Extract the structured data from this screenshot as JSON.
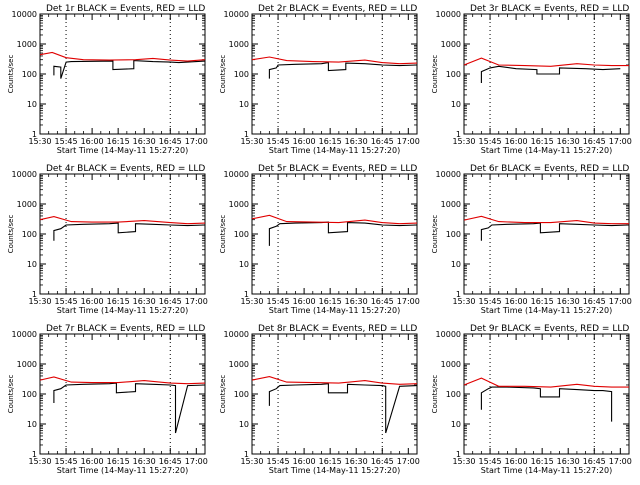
{
  "colors": {
    "events": "#000000",
    "lld": "#e00000",
    "axis": "#000000",
    "background": "#ffffff"
  },
  "chart_data": [
    {
      "type": "line",
      "title": "Det 1r BLACK = Events, RED = LLD",
      "xlabel": "Start Time (14-May-11 15:27:20)",
      "ylabel": "Counts/sec",
      "yscale": "log",
      "ylim": [
        1,
        10000
      ],
      "xtick_labels": [
        "15:30",
        "15:45",
        "16:00",
        "16:15",
        "16:30",
        "16:45",
        "17:00"
      ],
      "xlim_minutes_after_1530": [
        0,
        95
      ],
      "ytick_labels": [
        "1",
        "10",
        "100",
        "1000",
        "10000"
      ],
      "vertical_dotted_lines_at": [
        "15:45",
        "16:45"
      ],
      "series": [
        {
          "name": "Events",
          "color": "#000000",
          "x": [
            "15:38",
            "15:38",
            "15:42",
            "15:42",
            "15:45",
            "15:48",
            "16:00",
            "16:12",
            "16:12",
            "16:24",
            "16:24",
            "16:35",
            "16:45",
            "16:50",
            "17:00",
            "17:05"
          ],
          "y": [
            90,
            180,
            170,
            70,
            250,
            260,
            265,
            270,
            140,
            150,
            280,
            260,
            250,
            240,
            260,
            270
          ]
        },
        {
          "name": "LLD",
          "color": "#e00000",
          "x": [
            "15:30",
            "15:37",
            "15:45",
            "15:55",
            "16:10",
            "16:25",
            "16:35",
            "16:45",
            "16:55",
            "17:05"
          ],
          "y": [
            440,
            520,
            350,
            300,
            290,
            300,
            330,
            290,
            270,
            300
          ]
        }
      ]
    },
    {
      "type": "line",
      "title": "Det 2r BLACK = Events, RED = LLD",
      "xlabel": "Start Time (14-May-11 15:27:20)",
      "ylabel": "Counts/sec",
      "yscale": "log",
      "ylim": [
        1,
        10000
      ],
      "xtick_labels": [
        "15:30",
        "15:45",
        "16:00",
        "16:15",
        "16:30",
        "16:45",
        "17:00"
      ],
      "xlim_minutes_after_1530": [
        0,
        95
      ],
      "ytick_labels": [
        "1",
        "10",
        "100",
        "1000",
        "10000"
      ],
      "vertical_dotted_lines_at": [
        "15:45",
        "16:45"
      ],
      "series": [
        {
          "name": "Events",
          "color": "#000000",
          "x": [
            "15:40",
            "15:40",
            "15:44",
            "15:45",
            "15:55",
            "16:10",
            "16:14",
            "16:14",
            "16:24",
            "16:24",
            "16:35",
            "16:45",
            "16:55",
            "17:05"
          ],
          "y": [
            70,
            140,
            160,
            200,
            210,
            220,
            240,
            130,
            140,
            230,
            220,
            200,
            190,
            200
          ]
        },
        {
          "name": "LLD",
          "color": "#e00000",
          "x": [
            "15:30",
            "15:40",
            "15:50",
            "16:05",
            "16:20",
            "16:35",
            "16:45",
            "16:55",
            "17:05"
          ],
          "y": [
            300,
            370,
            280,
            260,
            250,
            290,
            240,
            220,
            230
          ]
        }
      ]
    },
    {
      "type": "line",
      "title": "Det 3r BLACK = Events, RED = LLD",
      "xlabel": "Start Time (14-May-11 15:27:20)",
      "ylabel": "Counts/sec",
      "yscale": "log",
      "ylim": [
        1,
        10000
      ],
      "xtick_labels": [
        "15:30",
        "15:45",
        "16:00",
        "16:15",
        "16:30",
        "16:45",
        "17:00"
      ],
      "xlim_minutes_after_1530": [
        0,
        95
      ],
      "ytick_labels": [
        "1",
        "10",
        "100",
        "1000",
        "10000"
      ],
      "vertical_dotted_lines_at": [
        "15:45",
        "16:45"
      ],
      "series": [
        {
          "name": "Events",
          "color": "#000000",
          "x": [
            "15:40",
            "15:40",
            "15:45",
            "15:50",
            "16:00",
            "16:12",
            "16:12",
            "16:25",
            "16:25",
            "16:40",
            "16:50",
            "17:00"
          ],
          "y": [
            50,
            120,
            160,
            180,
            150,
            140,
            100,
            100,
            160,
            150,
            140,
            150
          ]
        },
        {
          "name": "LLD",
          "color": "#e00000",
          "x": [
            "15:30",
            "15:40",
            "15:50",
            "16:05",
            "16:20",
            "16:35",
            "16:45",
            "16:55",
            "17:05"
          ],
          "y": [
            200,
            340,
            200,
            190,
            180,
            220,
            200,
            190,
            190
          ]
        }
      ]
    },
    {
      "type": "line",
      "title": "Det 4r BLACK = Events, RED = LLD",
      "xlabel": "Start Time (14-May-11 15:27:20)",
      "ylabel": "Counts/sec",
      "yscale": "log",
      "ylim": [
        1,
        10000
      ],
      "xtick_labels": [
        "15:30",
        "15:45",
        "16:00",
        "16:15",
        "16:30",
        "16:45",
        "17:00"
      ],
      "xlim_minutes_after_1530": [
        0,
        95
      ],
      "ytick_labels": [
        "1",
        "10",
        "100",
        "1000",
        "10000"
      ],
      "vertical_dotted_lines_at": [
        "15:45",
        "16:45"
      ],
      "series": [
        {
          "name": "Events",
          "color": "#000000",
          "x": [
            "15:38",
            "15:38",
            "15:42",
            "15:45",
            "15:55",
            "16:10",
            "16:15",
            "16:15",
            "16:25",
            "16:25",
            "16:35",
            "16:45",
            "16:55",
            "17:05"
          ],
          "y": [
            60,
            130,
            150,
            200,
            210,
            220,
            230,
            110,
            120,
            220,
            210,
            200,
            190,
            200
          ]
        },
        {
          "name": "LLD",
          "color": "#e00000",
          "x": [
            "15:30",
            "15:38",
            "15:48",
            "16:00",
            "16:15",
            "16:30",
            "16:45",
            "16:55",
            "17:05"
          ],
          "y": [
            300,
            380,
            260,
            250,
            250,
            280,
            240,
            220,
            230
          ]
        }
      ]
    },
    {
      "type": "line",
      "title": "Det 5r BLACK = Events, RED = LLD",
      "xlabel": "Start Time (14-May-11 15:27:20)",
      "ylabel": "Counts/sec",
      "yscale": "log",
      "ylim": [
        1,
        10000
      ],
      "xtick_labels": [
        "15:30",
        "15:45",
        "16:00",
        "16:15",
        "16:30",
        "16:45",
        "17:00"
      ],
      "xlim_minutes_after_1530": [
        0,
        95
      ],
      "ytick_labels": [
        "1",
        "10",
        "100",
        "1000",
        "10000"
      ],
      "vertical_dotted_lines_at": [
        "15:45",
        "16:45"
      ],
      "series": [
        {
          "name": "Events",
          "color": "#000000",
          "x": [
            "15:40",
            "15:40",
            "15:44",
            "15:46",
            "15:55",
            "16:10",
            "16:14",
            "16:14",
            "16:25",
            "16:25",
            "16:35",
            "16:45",
            "16:55",
            "17:05"
          ],
          "y": [
            40,
            150,
            180,
            220,
            230,
            240,
            250,
            110,
            120,
            240,
            230,
            200,
            190,
            200
          ]
        },
        {
          "name": "LLD",
          "color": "#e00000",
          "x": [
            "15:30",
            "15:40",
            "15:50",
            "16:05",
            "16:20",
            "16:35",
            "16:45",
            "16:55",
            "17:05"
          ],
          "y": [
            320,
            420,
            260,
            250,
            240,
            290,
            240,
            220,
            230
          ]
        }
      ]
    },
    {
      "type": "line",
      "title": "Det 6r BLACK = Events, RED = LLD",
      "xlabel": "Start Time (14-May-11 15:27:20)",
      "ylabel": "Counts/sec",
      "yscale": "log",
      "ylim": [
        1,
        10000
      ],
      "xtick_labels": [
        "15:30",
        "15:45",
        "16:00",
        "16:15",
        "16:30",
        "16:45",
        "17:00"
      ],
      "xlim_minutes_after_1530": [
        0,
        95
      ],
      "ytick_labels": [
        "1",
        "10",
        "100",
        "1000",
        "10000"
      ],
      "vertical_dotted_lines_at": [
        "15:45",
        "16:45"
      ],
      "series": [
        {
          "name": "Events",
          "color": "#000000",
          "x": [
            "15:40",
            "15:40",
            "15:44",
            "15:46",
            "15:55",
            "16:10",
            "16:14",
            "16:14",
            "16:25",
            "16:25",
            "16:35",
            "16:45",
            "16:55",
            "17:05"
          ],
          "y": [
            60,
            140,
            160,
            200,
            210,
            220,
            230,
            110,
            120,
            220,
            210,
            200,
            190,
            200
          ]
        },
        {
          "name": "LLD",
          "color": "#e00000",
          "x": [
            "15:30",
            "15:40",
            "15:50",
            "16:05",
            "16:20",
            "16:35",
            "16:45",
            "16:55",
            "17:05"
          ],
          "y": [
            290,
            390,
            260,
            240,
            240,
            280,
            230,
            220,
            220
          ]
        }
      ]
    },
    {
      "type": "line",
      "title": "Det 7r BLACK = Events, RED = LLD",
      "xlabel": "Start Time (14-May-11 15:27:20)",
      "ylabel": "Counts/sec",
      "yscale": "log",
      "ylim": [
        1,
        10000
      ],
      "xtick_labels": [
        "15:30",
        "15:45",
        "16:00",
        "16:15",
        "16:30",
        "16:45",
        "17:00"
      ],
      "xlim_minutes_after_1530": [
        0,
        95
      ],
      "ytick_labels": [
        "1",
        "10",
        "100",
        "1000",
        "10000"
      ],
      "vertical_dotted_lines_at": [
        "15:45",
        "16:45"
      ],
      "series": [
        {
          "name": "Events",
          "color": "#000000",
          "x": [
            "15:38",
            "15:38",
            "15:42",
            "15:45",
            "15:55",
            "16:10",
            "16:14",
            "16:14",
            "16:25",
            "16:25",
            "16:35",
            "16:45",
            "16:48",
            "16:48",
            "16:55",
            "17:05"
          ],
          "y": [
            50,
            130,
            150,
            200,
            210,
            220,
            230,
            110,
            120,
            220,
            210,
            200,
            190,
            5,
            190,
            200
          ]
        },
        {
          "name": "LLD",
          "color": "#e00000",
          "x": [
            "15:30",
            "15:38",
            "15:48",
            "16:00",
            "16:15",
            "16:30",
            "16:45",
            "16:55",
            "17:05"
          ],
          "y": [
            290,
            370,
            250,
            240,
            240,
            280,
            230,
            220,
            230
          ]
        }
      ]
    },
    {
      "type": "line",
      "title": "Det 8r BLACK = Events, RED = LLD",
      "xlabel": "Start Time (14-May-11 15:27:20)",
      "ylabel": "Counts/sec",
      "yscale": "log",
      "ylim": [
        1,
        10000
      ],
      "xtick_labels": [
        "15:30",
        "15:45",
        "16:00",
        "16:15",
        "16:30",
        "16:45",
        "17:00"
      ],
      "xlim_minutes_after_1530": [
        0,
        95
      ],
      "ytick_labels": [
        "1",
        "10",
        "100",
        "1000",
        "10000"
      ],
      "vertical_dotted_lines_at": [
        "15:45",
        "16:45"
      ],
      "series": [
        {
          "name": "Events",
          "color": "#000000",
          "x": [
            "15:40",
            "15:40",
            "15:44",
            "15:46",
            "15:55",
            "16:10",
            "16:14",
            "16:14",
            "16:25",
            "16:25",
            "16:35",
            "16:45",
            "16:47",
            "16:47",
            "16:55",
            "17:05"
          ],
          "y": [
            40,
            120,
            150,
            190,
            200,
            210,
            220,
            110,
            110,
            210,
            200,
            190,
            180,
            5,
            180,
            190
          ]
        },
        {
          "name": "LLD",
          "color": "#e00000",
          "x": [
            "15:30",
            "15:40",
            "15:50",
            "16:05",
            "16:20",
            "16:35",
            "16:45",
            "16:55",
            "17:05"
          ],
          "y": [
            290,
            380,
            250,
            240,
            230,
            280,
            230,
            210,
            220
          ]
        }
      ]
    },
    {
      "type": "line",
      "title": "Det 9r BLACK = Events, RED = LLD",
      "xlabel": "Start Time (14-May-11 15:27:20)",
      "ylabel": "Counts/sec",
      "yscale": "log",
      "ylim": [
        1,
        10000
      ],
      "xtick_labels": [
        "15:30",
        "15:45",
        "16:00",
        "16:15",
        "16:30",
        "16:45",
        "17:00"
      ],
      "xlim_minutes_after_1530": [
        0,
        95
      ],
      "ytick_labels": [
        "1",
        "10",
        "100",
        "1000",
        "10000"
      ],
      "vertical_dotted_lines_at": [
        "15:45",
        "16:45"
      ],
      "series": [
        {
          "name": "Events",
          "color": "#000000",
          "x": [
            "15:40",
            "15:40",
            "15:44",
            "15:46",
            "15:55",
            "16:10",
            "16:14",
            "16:14",
            "16:25",
            "16:25",
            "16:35",
            "16:45",
            "16:50",
            "16:55",
            "16:55"
          ],
          "y": [
            30,
            110,
            150,
            170,
            170,
            160,
            150,
            80,
            80,
            150,
            140,
            130,
            130,
            120,
            12
          ]
        },
        {
          "name": "LLD",
          "color": "#e00000",
          "x": [
            "15:30",
            "15:40",
            "15:50",
            "16:05",
            "16:20",
            "16:35",
            "16:45",
            "16:55",
            "17:05"
          ],
          "y": [
            200,
            340,
            180,
            180,
            170,
            210,
            180,
            170,
            170
          ]
        }
      ]
    }
  ]
}
